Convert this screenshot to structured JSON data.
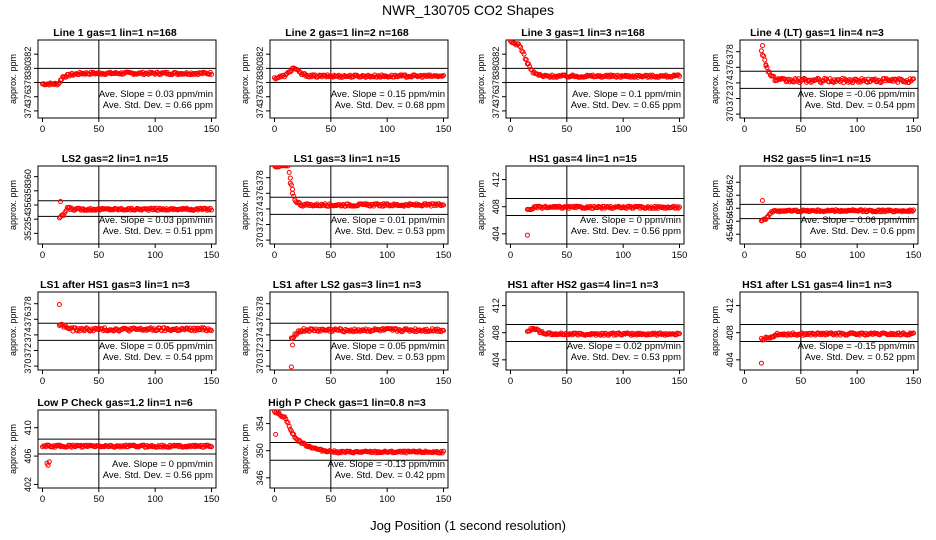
{
  "figure": {
    "title": "NWR_130705  CO2 Shapes",
    "xlabel": "Jog Position (1 second resolution)"
  },
  "colors": {
    "points": "#ff0000",
    "axes": "#000000",
    "background": "#ffffff"
  },
  "chart_data": [
    {
      "type": "scatter",
      "title": "Line 1 gas=1 lin=1 n=168",
      "ylabel": "approx. ppm",
      "xlim": [
        -4,
        154
      ],
      "ylim": [
        373,
        384
      ],
      "xticks": [
        0,
        50,
        100,
        150
      ],
      "yticks": [
        374,
        376,
        378,
        380,
        382
      ],
      "hlines": [
        380,
        378
      ],
      "vline": 50,
      "x_start": 0,
      "x_end": 150,
      "base": 379.3,
      "noise": 0.18,
      "shape": [
        [
          0,
          -1.5
        ],
        [
          14,
          -1.5
        ],
        [
          18,
          -0.5
        ],
        [
          25,
          -0.2
        ],
        [
          35,
          0
        ]
      ],
      "outliers": [],
      "slope_text": "Ave. Slope = 0.03  ppm/min",
      "sd_text": "Ave. Std. Dev. = 0.66  ppm"
    },
    {
      "type": "scatter",
      "title": "Line 2 gas=1 lin=2 n=168",
      "ylabel": "approx. ppm",
      "xlim": [
        -4,
        154
      ],
      "ylim": [
        373,
        384
      ],
      "xticks": [
        0,
        50,
        100,
        150
      ],
      "yticks": [
        374,
        376,
        378,
        380,
        382
      ],
      "hlines": [
        380,
        378
      ],
      "vline": 50,
      "x_start": 0,
      "x_end": 150,
      "base": 378.9,
      "noise": 0.18,
      "shape": [
        [
          0,
          -0.3
        ],
        [
          10,
          0.1
        ],
        [
          17,
          1.2
        ],
        [
          24,
          0.3
        ],
        [
          32,
          0
        ]
      ],
      "outliers": [],
      "slope_text": "Ave. Slope = 0.15  ppm/min",
      "sd_text": "Ave. Std. Dev. = 0.68  ppm"
    },
    {
      "type": "scatter",
      "title": "Line 3 gas=1 lin=3 n=168",
      "ylabel": "approx. ppm",
      "xlim": [
        -4,
        154
      ],
      "ylim": [
        373,
        384
      ],
      "xticks": [
        0,
        50,
        100,
        150
      ],
      "yticks": [
        374,
        376,
        378,
        380,
        382
      ],
      "hlines": [
        380,
        378
      ],
      "vline": 50,
      "x_start": 0,
      "x_end": 150,
      "base": 378.9,
      "noise": 0.18,
      "shape": [
        [
          0,
          4.8
        ],
        [
          8,
          4.4
        ],
        [
          14,
          2.2
        ],
        [
          20,
          0.5
        ],
        [
          28,
          0
        ]
      ],
      "outliers": [],
      "slope_text": "Ave. Slope = 0.1  ppm/min",
      "sd_text": "Ave. Std. Dev. = 0.65  ppm"
    },
    {
      "type": "scatter",
      "title": "Line 4 (LT) gas=1 lin=4 n=3",
      "ylabel": "approx. ppm",
      "xlim": [
        -4,
        154
      ],
      "ylim": [
        369.5,
        379.5
      ],
      "xticks": [
        0,
        50,
        100,
        150
      ],
      "yticks": [
        370,
        372,
        374,
        376,
        378
      ],
      "hlines": [
        375.5,
        373.3
      ],
      "vline": 50,
      "x_start": 15,
      "x_end": 150,
      "base": 374.3,
      "noise": 0.28,
      "shape": [
        [
          15,
          4
        ],
        [
          18,
          2.5
        ],
        [
          22,
          1
        ],
        [
          28,
          0
        ]
      ],
      "outliers": [
        [
          16,
          378.8
        ],
        [
          19,
          376.2
        ]
      ],
      "slope_text": "Ave. Slope = -0.06  ppm/min",
      "sd_text": "Ave. Std. Dev. = 0.54  ppm"
    },
    {
      "type": "scatter",
      "title": "LS2 gas=2 lin=1 n=15",
      "ylabel": "approx. ppm",
      "xlim": [
        -4,
        154
      ],
      "ylim": [
        350.5,
        361.5
      ],
      "xticks": [
        0,
        50,
        100,
        150
      ],
      "yticks": [
        352,
        354,
        356,
        358,
        360
      ],
      "hlines": [
        356.6,
        354.4
      ],
      "vline": 50,
      "x_start": 15,
      "x_end": 150,
      "base": 355.4,
      "noise": 0.16,
      "shape": [
        [
          15,
          -1.2
        ],
        [
          19,
          -0.8
        ],
        [
          22,
          0.2
        ],
        [
          27,
          0
        ]
      ],
      "outliers": [
        [
          16,
          356.5
        ]
      ],
      "slope_text": "Ave. Slope = 0.03  ppm/min",
      "sd_text": "Ave. Std. Dev. = 0.51  ppm"
    },
    {
      "type": "scatter",
      "title": "LS1 gas=3 lin=1 n=15",
      "ylabel": "approx. ppm",
      "xlim": [
        -4,
        154
      ],
      "ylim": [
        369.5,
        379.5
      ],
      "xticks": [
        0,
        50,
        100,
        150
      ],
      "yticks": [
        370,
        372,
        374,
        376,
        378
      ],
      "hlines": [
        375.5,
        373.3
      ],
      "vline": 50,
      "x_start": 0,
      "x_end": 150,
      "base": 374.5,
      "noise": 0.16,
      "shape": [
        [
          0,
          5
        ],
        [
          12,
          5
        ],
        [
          15,
          2.5
        ],
        [
          18,
          0.6
        ],
        [
          24,
          0
        ]
      ],
      "outliers": [
        [
          14,
          377.3
        ],
        [
          16,
          376
        ]
      ],
      "slope_text": "Ave. Slope = 0.01  ppm/min",
      "sd_text": "Ave. Std. Dev. = 0.53  ppm"
    },
    {
      "type": "scatter",
      "title": "HS1 gas=4 lin=1 n=15",
      "ylabel": "approx. ppm",
      "xlim": [
        -4,
        154
      ],
      "ylim": [
        402.5,
        414
      ],
      "xticks": [
        0,
        50,
        100,
        150
      ],
      "yticks": [
        404,
        408,
        412
      ],
      "hlines": [
        409.2,
        406.7
      ],
      "vline": 50,
      "x_start": 15,
      "x_end": 150,
      "base": 407.9,
      "noise": 0.16,
      "shape": [
        [
          15,
          -0.4
        ],
        [
          22,
          0
        ]
      ],
      "outliers": [
        [
          15,
          403.8
        ]
      ],
      "slope_text": "Ave. Slope = 0  ppm/min",
      "sd_text": "Ave. Std. Dev. = 0.56  ppm"
    },
    {
      "type": "scatter",
      "title": "HS2 gas=5 lin=1 n=15",
      "ylabel": "approx. ppm",
      "xlim": [
        -4,
        154
      ],
      "ylim": [
        452.5,
        464.5
      ],
      "xticks": [
        0,
        50,
        100,
        150
      ],
      "yticks": [
        454,
        456,
        458,
        460,
        462
      ],
      "hlines": [
        458.6,
        456.4
      ],
      "vline": 50,
      "x_start": 15,
      "x_end": 150,
      "base": 457.6,
      "noise": 0.16,
      "shape": [
        [
          15,
          -1.4
        ],
        [
          19,
          -1.2
        ],
        [
          23,
          -0.3
        ],
        [
          28,
          0
        ]
      ],
      "outliers": [
        [
          16,
          459.2
        ]
      ],
      "slope_text": "Ave. Slope = 0.06  ppm/min",
      "sd_text": "Ave. Std. Dev. = 0.6  ppm"
    },
    {
      "type": "scatter",
      "title": "LS1 after HS1 gas=3 lin=1 n=3",
      "ylabel": "approx. ppm",
      "xlim": [
        -4,
        154
      ],
      "ylim": [
        369.5,
        379.5
      ],
      "xticks": [
        0,
        50,
        100,
        150
      ],
      "yticks": [
        370,
        372,
        374,
        376,
        378
      ],
      "hlines": [
        375.5,
        373.3
      ],
      "vline": 50,
      "x_start": 15,
      "x_end": 150,
      "base": 374.7,
      "noise": 0.22,
      "shape": [
        [
          15,
          0.6
        ],
        [
          20,
          0.4
        ],
        [
          25,
          0
        ]
      ],
      "outliers": [
        [
          15,
          377.9
        ]
      ],
      "slope_text": "Ave. Slope = 0.05  ppm/min",
      "sd_text": "Ave. Std. Dev. = 0.54  ppm"
    },
    {
      "type": "scatter",
      "title": "LS1 after LS2 gas=3 lin=1 n=3",
      "ylabel": "approx. ppm",
      "xlim": [
        -4,
        154
      ],
      "ylim": [
        369.5,
        379.5
      ],
      "xticks": [
        0,
        50,
        100,
        150
      ],
      "yticks": [
        370,
        372,
        374,
        376,
        378
      ],
      "hlines": [
        375.5,
        373.3
      ],
      "vline": 50,
      "x_start": 15,
      "x_end": 150,
      "base": 374.6,
      "noise": 0.22,
      "shape": [
        [
          15,
          -1
        ],
        [
          20,
          -0.3
        ],
        [
          25,
          0
        ]
      ],
      "outliers": [
        [
          15,
          369.9
        ],
        [
          16,
          372.7
        ]
      ],
      "slope_text": "Ave. Slope = 0.05  ppm/min",
      "sd_text": "Ave. Std. Dev. = 0.53  ppm"
    },
    {
      "type": "scatter",
      "title": "HS1 after HS2 gas=4 lin=1 n=3",
      "ylabel": "approx. ppm",
      "xlim": [
        -4,
        154
      ],
      "ylim": [
        402.5,
        414
      ],
      "xticks": [
        0,
        50,
        100,
        150
      ],
      "yticks": [
        404,
        408,
        412
      ],
      "hlines": [
        409.2,
        406.7
      ],
      "vline": 50,
      "x_start": 15,
      "x_end": 150,
      "base": 407.8,
      "noise": 0.18,
      "shape": [
        [
          15,
          0.3
        ],
        [
          20,
          0.9
        ],
        [
          28,
          0.2
        ],
        [
          35,
          0
        ]
      ],
      "outliers": [],
      "slope_text": "Ave. Slope = 0.02  ppm/min",
      "sd_text": "Ave. Std. Dev. = 0.53  ppm"
    },
    {
      "type": "scatter",
      "title": "HS1 after LS1 gas=4 lin=1 n=3",
      "ylabel": "approx. ppm",
      "xlim": [
        -4,
        154
      ],
      "ylim": [
        402.5,
        414
      ],
      "xticks": [
        0,
        50,
        100,
        150
      ],
      "yticks": [
        404,
        408,
        412
      ],
      "hlines": [
        409.2,
        406.7
      ],
      "vline": 50,
      "x_start": 15,
      "x_end": 150,
      "base": 407.8,
      "noise": 0.18,
      "shape": [
        [
          15,
          -0.8
        ],
        [
          22,
          -0.5
        ],
        [
          30,
          0
        ]
      ],
      "outliers": [
        [
          15,
          403.5
        ]
      ],
      "slope_text": "Ave. Slope = -0.15  ppm/min",
      "sd_text": "Ave. Std. Dev. = 0.52  ppm"
    },
    {
      "type": "scatter",
      "title": "Low P Check gas=1.2 lin=1 n=6",
      "ylabel": "approx. ppm",
      "xlim": [
        -4,
        154
      ],
      "ylim": [
        401.5,
        412.5
      ],
      "xticks": [
        0,
        50,
        100,
        150
      ],
      "yticks": [
        402,
        406,
        410
      ],
      "hlines": [
        408.4,
        406.3
      ],
      "vline": 50,
      "x_start": 0,
      "x_end": 150,
      "base": 407.4,
      "noise": 0.16,
      "shape": [],
      "outliers": [
        [
          4,
          405
        ],
        [
          5,
          404.7
        ],
        [
          6,
          405.2
        ]
      ],
      "slope_text": "Ave. Slope = 0  ppm/min",
      "sd_text": "Ave. Std. Dev. = 0.56  ppm"
    },
    {
      "type": "scatter",
      "title": "High P Check gas=1 lin=0.8 n=3",
      "ylabel": "approx. ppm",
      "xlim": [
        -4,
        154
      ],
      "ylim": [
        344.5,
        356
      ],
      "xticks": [
        0,
        50,
        100,
        150
      ],
      "yticks": [
        346,
        350,
        354
      ],
      "hlines": [
        351.2,
        348.6
      ],
      "vline": 50,
      "x_start": 0,
      "x_end": 150,
      "base": 349.8,
      "noise": 0.15,
      "shape": [
        [
          0,
          6
        ],
        [
          10,
          5
        ],
        [
          15,
          3
        ],
        [
          20,
          1.8
        ],
        [
          28,
          1
        ],
        [
          40,
          0.3
        ],
        [
          55,
          0
        ]
      ],
      "outliers": [
        [
          1,
          352.4
        ]
      ],
      "slope_text": "Ave. Slope = -0.13  ppm/min",
      "sd_text": "Ave. Std. Dev. = 0.42  ppm"
    }
  ]
}
